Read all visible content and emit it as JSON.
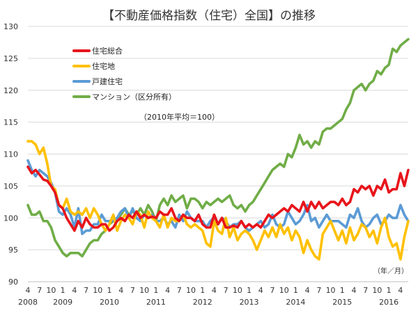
{
  "chart_data": {
    "type": "line",
    "title": "【不動産価格指数（住宅）全国】の推移",
    "note": "（2010年平均＝100）",
    "xunit": "（年／月）",
    "ylim": [
      90,
      130
    ],
    "yticks": [
      90,
      95,
      100,
      105,
      110,
      115,
      120,
      125,
      130
    ],
    "grid": true,
    "legend_position": "top-left",
    "month_labels": [
      "4",
      "7",
      "10",
      "1",
      "4",
      "7",
      "10",
      "1",
      "4",
      "7",
      "10",
      "1",
      "4",
      "7",
      "10",
      "1",
      "4",
      "7",
      "10",
      "1",
      "4",
      "7",
      "10",
      "1",
      "4",
      "7",
      "10",
      "1",
      "4",
      "7",
      "10",
      "1",
      "4"
    ],
    "year_labels": [
      "2008",
      "2009",
      "2010",
      "2011",
      "2012",
      "2013",
      "2014",
      "2015",
      "2016"
    ],
    "x": [
      "2008-04",
      "2008-05",
      "2008-06",
      "2008-07",
      "2008-08",
      "2008-09",
      "2008-10",
      "2008-11",
      "2008-12",
      "2009-01",
      "2009-02",
      "2009-03",
      "2009-04",
      "2009-05",
      "2009-06",
      "2009-07",
      "2009-08",
      "2009-09",
      "2009-10",
      "2009-11",
      "2009-12",
      "2010-01",
      "2010-02",
      "2010-03",
      "2010-04",
      "2010-05",
      "2010-06",
      "2010-07",
      "2010-08",
      "2010-09",
      "2010-10",
      "2010-11",
      "2010-12",
      "2011-01",
      "2011-02",
      "2011-03",
      "2011-04",
      "2011-05",
      "2011-06",
      "2011-07",
      "2011-08",
      "2011-09",
      "2011-10",
      "2011-11",
      "2011-12",
      "2012-01",
      "2012-02",
      "2012-03",
      "2012-04",
      "2012-05",
      "2012-06",
      "2012-07",
      "2012-08",
      "2012-09",
      "2012-10",
      "2012-11",
      "2012-12",
      "2013-01",
      "2013-02",
      "2013-03",
      "2013-04",
      "2013-05",
      "2013-06",
      "2013-07",
      "2013-08",
      "2013-09",
      "2013-10",
      "2013-11",
      "2013-12",
      "2014-01",
      "2014-02",
      "2014-03",
      "2014-04",
      "2014-05",
      "2014-06",
      "2014-07",
      "2014-08",
      "2014-09",
      "2014-10",
      "2014-11",
      "2014-12",
      "2015-01",
      "2015-02",
      "2015-03",
      "2015-04",
      "2015-05",
      "2015-06",
      "2015-07",
      "2015-08",
      "2015-09",
      "2015-10",
      "2015-11",
      "2015-12",
      "2016-01",
      "2016-02",
      "2016-03",
      "2016-04",
      "2016-05",
      "2016-06"
    ],
    "series": [
      {
        "name": "住宅総合",
        "color": "#e8141b",
        "values": [
          108.0,
          107.0,
          107.5,
          106.8,
          106.0,
          105.8,
          105.0,
          104.0,
          102.0,
          101.5,
          100.0,
          99.0,
          98.0,
          99.5,
          98.5,
          100.0,
          99.0,
          98.5,
          98.5,
          99.0,
          99.0,
          98.0,
          98.5,
          99.5,
          100.0,
          99.5,
          100.5,
          100.0,
          101.0,
          100.0,
          100.5,
          100.0,
          100.2,
          100.0,
          101.0,
          100.5,
          100.5,
          101.5,
          100.0,
          99.5,
          100.5,
          100.0,
          100.0,
          99.5,
          100.5,
          99.0,
          98.5,
          98.5,
          100.5,
          99.0,
          100.0,
          98.5,
          98.5,
          98.8,
          98.5,
          99.5,
          98.5,
          99.0,
          98.5,
          99.0,
          98.5,
          99.5,
          100.5,
          100.0,
          100.5,
          101.0,
          101.5,
          101.0,
          102.0,
          101.5,
          101.0,
          102.5,
          101.0,
          102.5,
          101.5,
          102.5,
          101.5,
          102.0,
          102.5,
          102.5,
          102.0,
          103.0,
          102.0,
          102.5,
          104.5,
          104.0,
          105.0,
          104.5,
          105.0,
          103.5,
          105.0,
          104.5,
          106.0,
          104.0,
          104.5,
          104.5,
          107.0,
          105.0,
          107.5
        ]
      },
      {
        "name": "住宅地",
        "color": "#ffc000",
        "values": [
          112.0,
          112.0,
          111.5,
          110.0,
          111.0,
          108.5,
          105.0,
          104.5,
          102.0,
          101.5,
          103.0,
          101.0,
          100.5,
          101.0,
          100.5,
          101.5,
          100.0,
          101.5,
          100.5,
          99.0,
          98.0,
          99.0,
          100.5,
          98.0,
          99.5,
          100.5,
          100.0,
          99.0,
          101.0,
          100.5,
          98.5,
          101.0,
          100.0,
          99.5,
          98.5,
          100.5,
          98.5,
          100.0,
          99.5,
          99.5,
          100.5,
          99.0,
          98.5,
          99.0,
          98.5,
          98.0,
          96.0,
          95.5,
          99.5,
          98.0,
          97.5,
          100.0,
          97.0,
          98.5,
          96.5,
          97.5,
          98.0,
          97.5,
          96.5,
          95.0,
          96.5,
          98.0,
          97.0,
          98.5,
          97.0,
          99.0,
          97.5,
          98.5,
          96.5,
          98.0,
          97.0,
          94.5,
          96.5,
          95.0,
          94.0,
          93.5,
          97.5,
          98.5,
          99.5,
          98.0,
          96.5,
          98.0,
          96.0,
          98.5,
          96.5,
          97.5,
          99.0,
          98.5,
          97.0,
          98.0,
          96.0,
          98.5,
          100.0,
          97.0,
          95.5,
          96.0,
          93.5,
          97.0,
          99.5
        ]
      },
      {
        "name": "戸建住宅",
        "color": "#5b9bd5",
        "values": [
          109.0,
          107.5,
          106.5,
          107.5,
          107.0,
          106.5,
          105.5,
          104.0,
          101.0,
          100.5,
          101.5,
          100.5,
          98.5,
          101.5,
          97.5,
          98.0,
          98.0,
          99.0,
          99.0,
          100.5,
          99.5,
          99.5,
          99.5,
          100.0,
          101.0,
          101.5,
          100.0,
          101.5,
          100.0,
          99.5,
          100.5,
          100.0,
          100.5,
          99.5,
          99.5,
          100.0,
          99.0,
          99.5,
          98.5,
          100.5,
          99.5,
          101.0,
          100.0,
          99.5,
          99.5,
          99.5,
          98.5,
          99.5,
          100.0,
          99.0,
          100.0,
          99.5,
          98.5,
          99.0,
          99.0,
          99.5,
          98.5,
          98.0,
          98.5,
          99.0,
          99.5,
          98.5,
          99.0,
          100.5,
          99.0,
          98.5,
          99.0,
          101.0,
          100.0,
          99.0,
          99.5,
          100.5,
          102.0,
          99.5,
          100.0,
          98.5,
          99.5,
          100.5,
          99.5,
          99.5,
          99.5,
          99.0,
          98.5,
          100.5,
          100.0,
          101.5,
          99.5,
          98.5,
          99.0,
          100.0,
          100.5,
          99.0,
          99.5,
          100.5,
          100.0,
          100.0,
          102.0,
          100.5,
          99.5
        ]
      },
      {
        "name": "マンション（区分所有）",
        "color": "#70ad47",
        "values": [
          102.0,
          100.5,
          100.5,
          101.0,
          99.5,
          99.5,
          98.5,
          96.5,
          95.5,
          94.5,
          94.0,
          94.5,
          94.5,
          94.5,
          94.0,
          95.0,
          96.0,
          96.5,
          96.5,
          97.5,
          98.0,
          99.0,
          99.5,
          100.0,
          100.5,
          101.5,
          100.5,
          101.0,
          100.5,
          101.5,
          100.5,
          102.0,
          101.0,
          99.5,
          102.0,
          103.0,
          102.0,
          103.5,
          102.5,
          103.0,
          103.5,
          101.5,
          103.0,
          103.0,
          102.5,
          101.5,
          102.5,
          102.0,
          102.5,
          103.0,
          102.5,
          103.0,
          103.5,
          102.0,
          101.5,
          102.0,
          101.0,
          102.0,
          102.5,
          103.5,
          104.5,
          105.5,
          106.5,
          107.5,
          108.0,
          108.5,
          108.0,
          110.0,
          109.5,
          111.0,
          113.0,
          111.5,
          112.0,
          111.0,
          112.0,
          111.5,
          113.5,
          114.0,
          114.0,
          114.5,
          115.0,
          115.5,
          117.0,
          118.0,
          120.0,
          120.5,
          121.0,
          120.0,
          121.0,
          121.5,
          123.0,
          122.5,
          123.5,
          124.0,
          126.5,
          126.0,
          127.0,
          127.5,
          128.0
        ]
      }
    ]
  }
}
